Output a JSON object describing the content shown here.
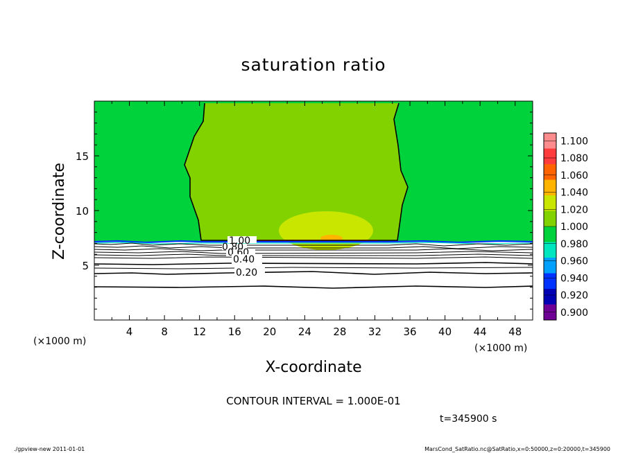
{
  "chart_data": {
    "type": "heatmap",
    "title": "saturation ratio",
    "xlabel": "X-coordinate",
    "ylabel": "Z-coordinate",
    "x_unit": "(×1000 m)",
    "y_unit": "(×1000 m)",
    "xlim": [
      0,
      50
    ],
    "ylim": [
      0,
      20
    ],
    "x_ticks": [
      4,
      8,
      12,
      16,
      20,
      24,
      28,
      32,
      36,
      40,
      44,
      48
    ],
    "y_ticks": [
      5,
      10,
      15
    ],
    "colorbar": {
      "levels": [
        "1.100",
        "1.080",
        "1.060",
        "1.040",
        "1.020",
        "1.000",
        "0.980",
        "0.960",
        "0.940",
        "0.920",
        "0.900"
      ],
      "colors": [
        "#ff8c8c",
        "#ff3c3c",
        "#ff6400",
        "#ffb400",
        "#c8e600",
        "#82d200",
        "#00d23c",
        "#00e6be",
        "#00a0ff",
        "#0032ff",
        "#0000b4",
        "#6e0096"
      ]
    },
    "contour_labels": [
      "1.00",
      "0.80",
      "0.60",
      "0.40",
      "0.20"
    ],
    "contour_interval_label": "CONTOUR INTERVAL = 1.000E-01",
    "time_label": "t=345900 s"
  },
  "footer": {
    "left": "./gpview-new  2011-01-01",
    "right": "MarsCond_SatRatio.nc@SatRatio,x=0:50000,z=0:20000,t=345900"
  },
  "colors": {
    "field_green": "#00d23c",
    "inner_green": "#82d200",
    "warm_core": "#c8e600",
    "hot_core": "#ffb400",
    "boundary_blue": "#0032ff"
  }
}
